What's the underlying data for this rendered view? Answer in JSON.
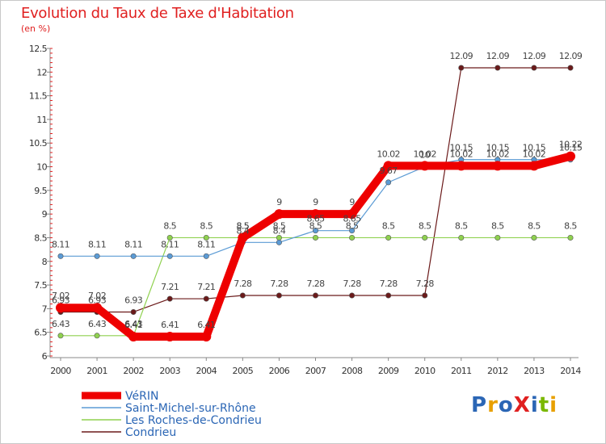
{
  "title": "Evolution du Taux de Taxe d'Habitation",
  "subtitle": "(en %)",
  "logo": {
    "text": "ProXiti",
    "colors": [
      "#2b66b5",
      "#e8a000",
      "#2b66b5",
      "#e02020",
      "#2b66b5",
      "#7ab800",
      "#e8a000"
    ]
  },
  "chart_data": {
    "type": "line",
    "title": "Evolution du Taux de Taxe d'Habitation",
    "ylabel": "(en %)",
    "xlabel": "",
    "ylim": [
      6,
      12.5
    ],
    "yticks": [
      "6",
      "6.5",
      "7",
      "7.5",
      "8",
      "8.5",
      "9",
      "9.5",
      "10",
      "10.5",
      "11",
      "11.5",
      "12",
      "12.5"
    ],
    "grid": false,
    "legend_position": "bottom-left",
    "categories": [
      "2000",
      "2001",
      "2002",
      "2003",
      "2004",
      "2005",
      "2006",
      "2007",
      "2008",
      "2009",
      "2010",
      "2011",
      "2012",
      "2013",
      "2014"
    ],
    "series": [
      {
        "name": "Condrieu",
        "color": "#6b1a1a",
        "values": [
          6.93,
          6.93,
          6.93,
          7.21,
          7.21,
          7.28,
          7.28,
          7.28,
          7.28,
          7.28,
          7.28,
          12.09,
          12.09,
          12.09,
          12.09
        ],
        "labels": [
          "6.93",
          "6.93",
          "6.93",
          "7.21",
          "7.21",
          "7.28",
          "7.28",
          "7.28",
          "7.28",
          "7.28",
          "7.28",
          "12.09",
          "12.09",
          "12.09",
          "12.09"
        ]
      },
      {
        "name": "Les Roches-de-Condrieu",
        "color": "#8fd14f",
        "values": [
          6.43,
          6.43,
          6.43,
          8.5,
          8.5,
          8.5,
          8.5,
          8.5,
          8.5,
          8.5,
          8.5,
          8.5,
          8.5,
          8.5,
          8.5
        ],
        "labels": [
          "6.43",
          "6.43",
          "6.43",
          "8.5",
          "8.5",
          "8.5",
          "8.5",
          "8.5",
          "8.5",
          "8.5",
          "8.5",
          "8.5",
          "8.5",
          "8.5",
          "8.5"
        ]
      },
      {
        "name": "Saint-Michel-sur-Rhône",
        "color": "#5b9bd5",
        "values": [
          8.11,
          8.11,
          8.11,
          8.11,
          8.11,
          8.4,
          8.4,
          8.65,
          8.65,
          9.67,
          10,
          10.15,
          10.15,
          10.15,
          10.15
        ],
        "labels": [
          "8.11",
          "8.11",
          "8.11",
          "8.11",
          "8.11",
          "8.4",
          "8.4",
          "8.65",
          "8.65",
          "9.67",
          "10",
          "10.15",
          "10.15",
          "10.15",
          "10.15"
        ]
      },
      {
        "name": "VéRIN",
        "color": "#ee0000",
        "values": [
          7.02,
          7.02,
          6.41,
          6.41,
          6.41,
          8.5,
          9,
          9,
          9,
          10.02,
          10.02,
          10.02,
          10.02,
          10.02,
          10.22
        ],
        "labels": [
          "7.02",
          "7.02",
          "6.41",
          "6.41",
          "6.41",
          "8.5",
          "9",
          "9",
          "9",
          "10.02",
          "10.02",
          "10.02",
          "10.02",
          "10.02",
          "10.22"
        ]
      }
    ],
    "legend": [
      "VéRIN",
      "Saint-Michel-sur-Rhône",
      "Les Roches-de-Condrieu",
      "Condrieu"
    ]
  }
}
